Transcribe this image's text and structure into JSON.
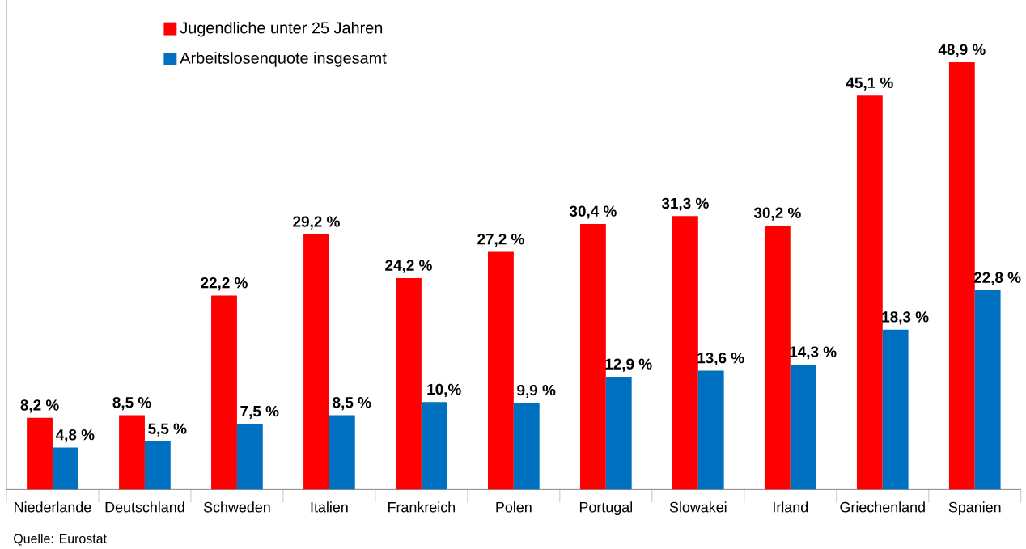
{
  "chart_data": {
    "type": "bar",
    "categories": [
      "Niederlande",
      "Deutschland",
      "Schweden",
      "Italien",
      "Frankreich",
      "Polen",
      "Portugal",
      "Slowakei",
      "Irland",
      "Griechenland",
      "Spanien"
    ],
    "series": [
      {
        "name": "Jugendliche unter 25 Jahren",
        "color": "#ff0000",
        "values": [
          8.2,
          8.5,
          22.2,
          29.2,
          24.2,
          27.2,
          30.4,
          31.3,
          30.2,
          45.1,
          48.9
        ],
        "value_labels": [
          "8,2 %",
          "8,5 %",
          "22,2 %",
          "29,2 %",
          "24,2 %",
          "27,2 %",
          "30,4 %",
          "31,3 %",
          "30,2 %",
          "45,1 %",
          "48,9 %"
        ]
      },
      {
        "name": "Arbeitslosenquote insgesamt",
        "color": "#0070c0",
        "values": [
          4.8,
          5.5,
          7.5,
          8.5,
          10,
          9.9,
          12.9,
          13.6,
          14.3,
          18.3,
          22.8
        ],
        "value_labels": [
          "4,8 %",
          "5,5 %",
          "7,5 %",
          "8,5 %",
          "10,%",
          "9,9 %",
          "12,9 %",
          "13,6 %",
          "14,3 %",
          "18,3 %",
          "22,8 %"
        ]
      }
    ],
    "ylim": [
      0,
      56
    ],
    "tick_labels": "x",
    "legend": "top left",
    "annotations": [
      "Quelle: Eurostat"
    ]
  }
}
